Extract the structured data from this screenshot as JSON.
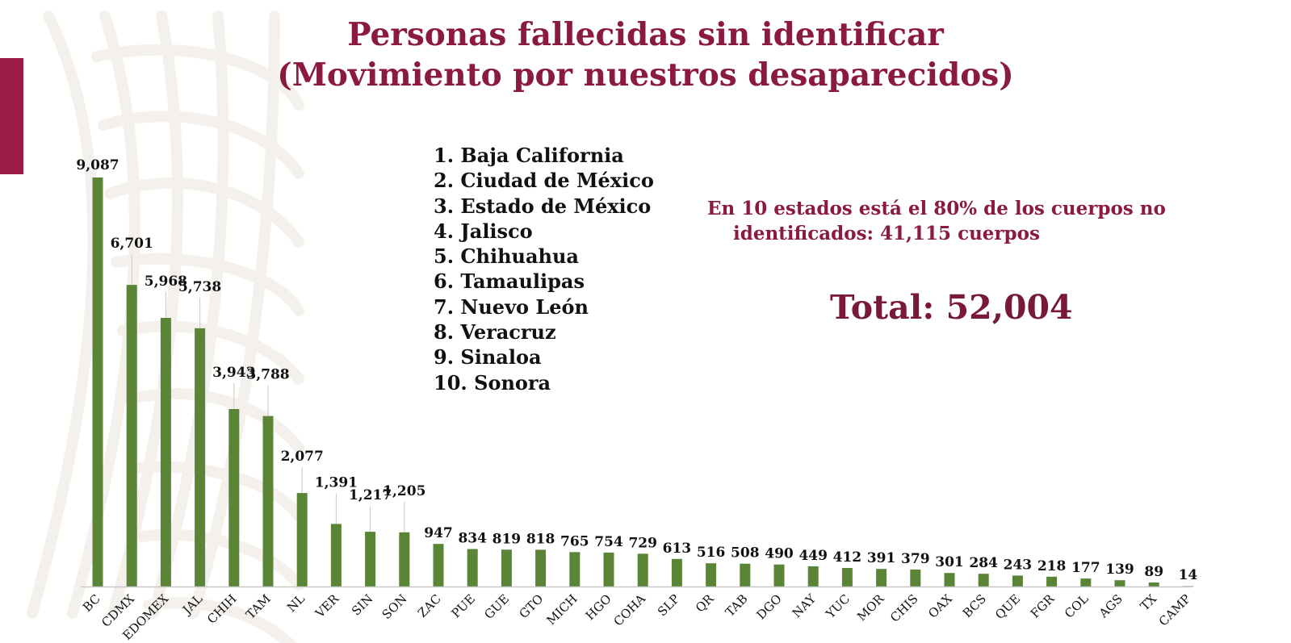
{
  "colors": {
    "title": "#8b1a41",
    "accent_bar": "#9c1b44",
    "bar": "#5a8436",
    "bar_last": "#b5b5b5",
    "leader": "#c8c8c8",
    "axis": "#c8c8c8",
    "text": "#111111",
    "note": "#8b1a41",
    "total": "#7a1838",
    "pattern": "#ece7de"
  },
  "title_lines": [
    "Personas fallecidas sin identificar",
    "(Movimiento por nuestros desaparecidos)"
  ],
  "top_states": [
    "1. Baja California",
    "2. Ciudad de México",
    "3. Estado de México",
    "4. Jalisco",
    "5. Chihuahua",
    "6. Tamaulipas",
    "7. Nuevo León",
    "8. Veracruz",
    "9. Sinaloa",
    "10. Sonora"
  ],
  "note_lines": [
    "En 10 estados está el 80% de los cuerpos no",
    "identificados: 41,115 cuerpos"
  ],
  "total_label": "Total: 52,004",
  "chart_data": {
    "type": "bar",
    "title": "",
    "xlabel": "",
    "ylabel": "",
    "ylim": [
      0,
      9087
    ],
    "grid": false,
    "legend": "none",
    "categories": [
      "BC",
      "CDMX",
      "EDOMEX",
      "JAL",
      "CHIH",
      "TAM",
      "NL",
      "VER",
      "SIN",
      "SON",
      "ZAC",
      "PUE",
      "GUE",
      "GTO",
      "MICH",
      "HGO",
      "COHA",
      "SLP",
      "QR",
      "TAB",
      "DGO",
      "NAY",
      "YUC",
      "MOR",
      "CHIS",
      "OAX",
      "BCS",
      "QUE",
      "FGR",
      "COL",
      "AGS",
      "TX",
      "CAMP"
    ],
    "values": [
      9087,
      6701,
      5968,
      5738,
      3943,
      3788,
      2077,
      1391,
      1217,
      1205,
      947,
      834,
      819,
      818,
      765,
      754,
      729,
      613,
      516,
      508,
      490,
      449,
      412,
      391,
      379,
      301,
      284,
      243,
      218,
      177,
      139,
      89,
      14
    ],
    "value_labels": [
      "9,087",
      "6,701",
      "5,968",
      "5,738",
      "3,943",
      "3,788",
      "2,077",
      "1,391",
      "1,217",
      "1,205",
      "947",
      "834",
      "819",
      "818",
      "765",
      "754",
      "729",
      "613",
      "516",
      "508",
      "490",
      "449",
      "412",
      "391",
      "379",
      "301",
      "284",
      "243",
      "218",
      "177",
      "139",
      "89",
      "14"
    ]
  }
}
